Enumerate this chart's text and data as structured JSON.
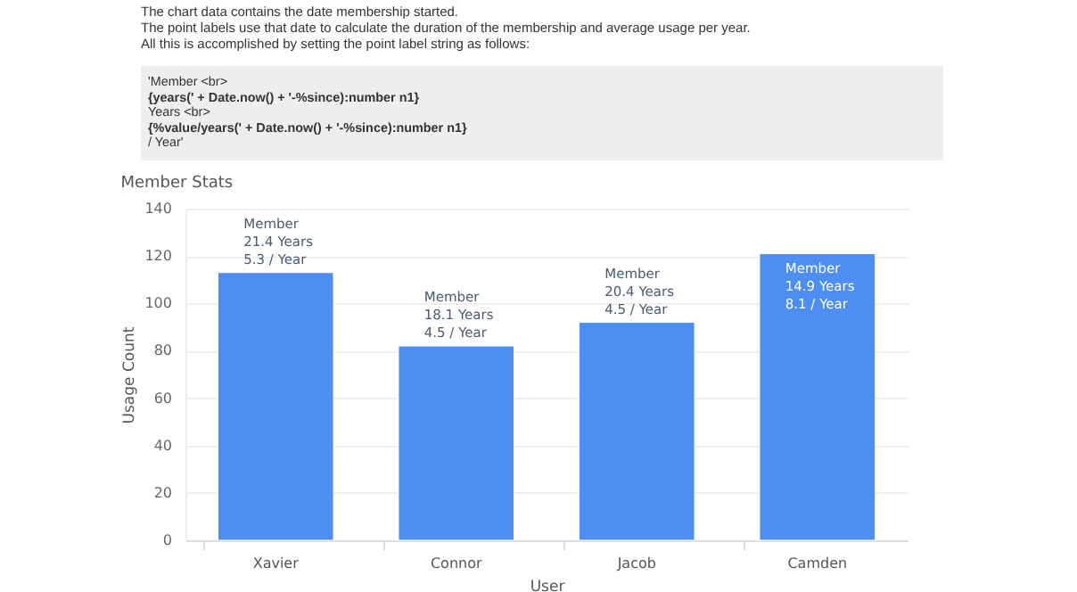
{
  "chart_data": {
    "type": "bar",
    "title": "Member Stats",
    "xlabel": "User",
    "ylabel": "Usage Count",
    "categories": [
      "Xavier",
      "Connor",
      "Jacob",
      "Camden"
    ],
    "values": [
      113,
      82,
      92,
      121
    ],
    "color": "#4d8ef2",
    "value_labels": [
      "Member\n21.4 Years\n5.3 / Year",
      "Member\n18.1 Years\n4.5 / Year",
      "Member\n20.4 Years\n4.5 / Year",
      "Member\n14.9 Years\n8.1 / Year"
    ],
    "ylim": [
      0,
      140
    ],
    "yticks": [
      0,
      20,
      40,
      60,
      80,
      100,
      120,
      140
    ],
    "grid": "y",
    "annotations": [
      "The chart data contains the date membership started.",
      "The point labels use that date to calculate the duration of the membership and average usage per year.",
      "All this is accomplished by setting the point label string as follows:",
      "'Member <br>\n{years(' + Date.now() + '-%since):number n1}\nYears <br>\n{%value/years(' + Date.now() + '-%since):number n1}\n/ Year'"
    ]
  }
}
